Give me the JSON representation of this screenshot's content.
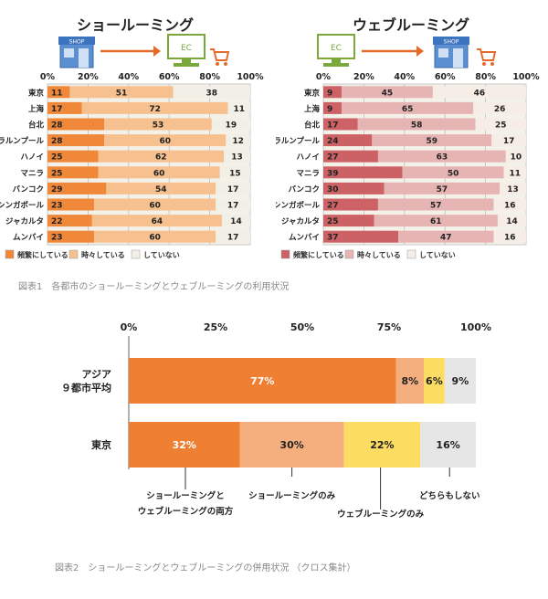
{
  "showrooming": {
    "title": "ショールーミング"
  },
  "webrooming": {
    "title": "ウェブルーミング"
  },
  "icons": {
    "shop_label": "SHOP",
    "ec_label": "EC"
  },
  "colors": {
    "dark_orange": "#f0883a",
    "light_orange": "#f7c08f",
    "pale": "#f2f0e6",
    "dark_rose": "#cc6266",
    "light_rose": "#e7b4b4",
    "pale_rose": "#f5ede6",
    "stack_orange": "#ee7f33",
    "stack_salmon": "#f5ae7e",
    "stack_yellow": "#fddc62",
    "stack_gray": "#e6e6e6"
  },
  "figure1_caption": "図表1　各都市のショールーミングとウェブルーミングの利用状況",
  "figure2_caption": "図表2　ショールーミングとウェブルーミングの併用状況 （クロス集計）",
  "chart_data": [
    {
      "type": "bar",
      "orientation": "horizontal-stacked-100",
      "title": "ショールーミング",
      "categories": [
        "東京",
        "上海",
        "台北",
        "クアラルンプール",
        "ハノイ",
        "マニラ",
        "バンコク",
        "シンガポール",
        "ジャカルタ",
        "ムンバイ"
      ],
      "x_ticks": [
        "0%",
        "20%",
        "40%",
        "60%",
        "80%",
        "100%"
      ],
      "xlim": [
        0,
        100
      ],
      "series": [
        {
          "name": "頻繁にしている",
          "values": [
            11,
            17,
            28,
            28,
            25,
            25,
            29,
            23,
            22,
            23
          ]
        },
        {
          "name": "時々している",
          "values": [
            51,
            72,
            53,
            60,
            62,
            60,
            54,
            60,
            64,
            60
          ]
        },
        {
          "name": "していない",
          "values": [
            38,
            11,
            19,
            12,
            13,
            15,
            17,
            17,
            14,
            17
          ]
        }
      ],
      "legend_position": "bottom"
    },
    {
      "type": "bar",
      "orientation": "horizontal-stacked-100",
      "title": "ウェブルーミング",
      "categories": [
        "東京",
        "上海",
        "台北",
        "クアラルンプール",
        "ハノイ",
        "マニラ",
        "バンコク",
        "シンガポール",
        "ジャカルタ",
        "ムンバイ"
      ],
      "x_ticks": [
        "0%",
        "20%",
        "40%",
        "60%",
        "80%",
        "100%"
      ],
      "xlim": [
        0,
        100
      ],
      "series": [
        {
          "name": "頻繁にしている",
          "values": [
            9,
            9,
            17,
            24,
            27,
            39,
            30,
            27,
            25,
            37
          ]
        },
        {
          "name": "時々している",
          "values": [
            45,
            65,
            58,
            59,
            63,
            50,
            57,
            57,
            61,
            47
          ]
        },
        {
          "name": "していない",
          "values": [
            46,
            26,
            25,
            17,
            10,
            11,
            13,
            16,
            14,
            16
          ]
        }
      ],
      "legend_position": "bottom"
    },
    {
      "type": "bar",
      "orientation": "horizontal-stacked-100",
      "categories": [
        "アジア\n９都市平均",
        "東京"
      ],
      "x_ticks": [
        "0%",
        "25%",
        "50%",
        "75%",
        "100%"
      ],
      "xlim": [
        0,
        100
      ],
      "series": [
        {
          "name": "ショールーミングと\nウェブルーミングの両方",
          "values": [
            77,
            32
          ]
        },
        {
          "name": "ショールーミングのみ",
          "values": [
            8,
            30
          ]
        },
        {
          "name": "ウェブルーミングのみ",
          "values": [
            6,
            22
          ]
        },
        {
          "name": "どちらもしない",
          "values": [
            9,
            16
          ]
        }
      ],
      "legend_position": "bottom callouts"
    }
  ]
}
